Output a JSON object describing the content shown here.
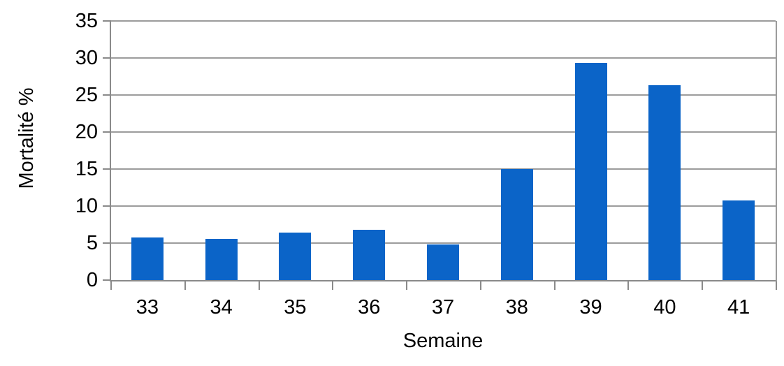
{
  "chart_data": {
    "type": "bar",
    "categories": [
      "33",
      "34",
      "35",
      "36",
      "37",
      "38",
      "39",
      "40",
      "41"
    ],
    "values": [
      5.8,
      5.6,
      6.4,
      6.8,
      4.8,
      15.0,
      29.3,
      26.3,
      10.8
    ],
    "title": "",
    "xlabel": "Semaine",
    "ylabel": "Mortalité %",
    "ylim": [
      0,
      35
    ],
    "yticks": [
      0,
      5,
      10,
      15,
      20,
      25,
      30,
      35
    ],
    "grid": true,
    "legend": false,
    "series_count": 1,
    "colors": {
      "bar": "#0b64c8",
      "gridline": "#9c9c9c",
      "axis": "#8a8a8a",
      "text": "#000000",
      "background": "#ffffff"
    }
  }
}
